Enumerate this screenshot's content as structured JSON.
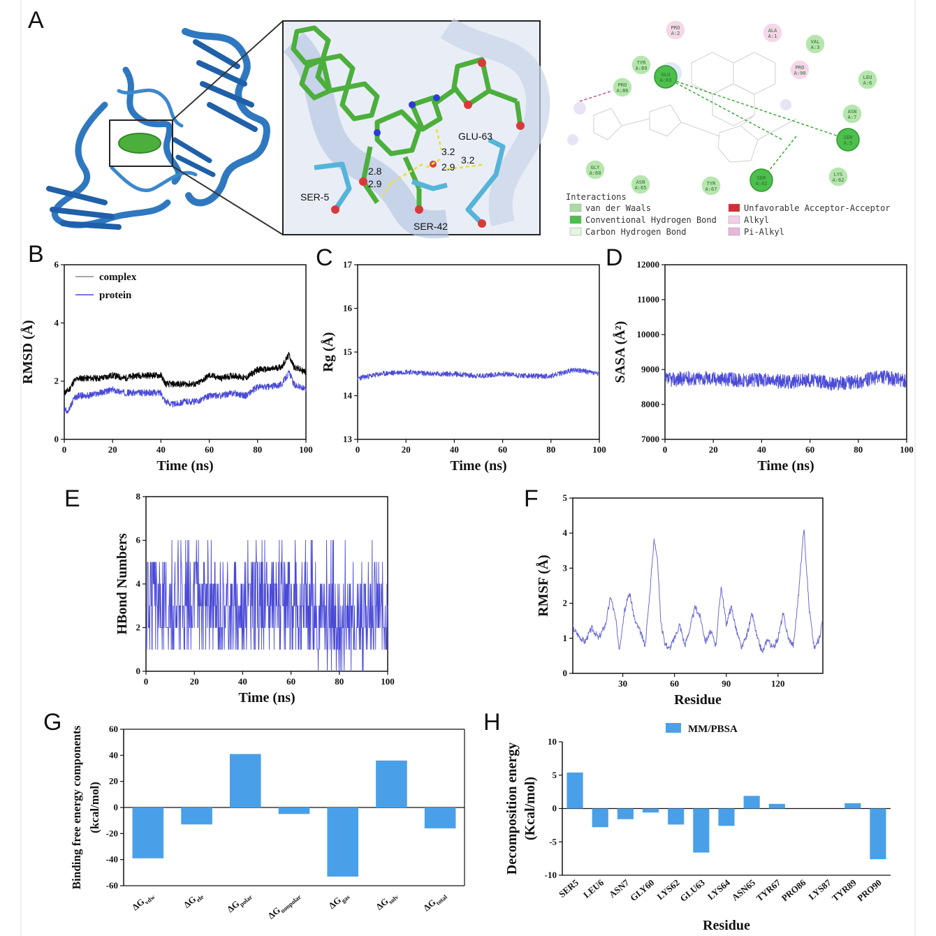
{
  "panel_labels": {
    "A": "A",
    "B": "B",
    "C": "C",
    "D": "D",
    "E": "E",
    "F": "F",
    "G": "G",
    "H": "H"
  },
  "panelA": {
    "zoom_labels": {
      "ser5": "SER-5",
      "ser42": "SER-42",
      "glu63": "GLU-63"
    },
    "distances": [
      "2.8",
      "2.9",
      "3.2",
      "2.9",
      "3.2"
    ],
    "residues": [
      {
        "name": "PRO A:2",
        "kind": "alkyl"
      },
      {
        "name": "ALA A:1",
        "kind": "alkyl"
      },
      {
        "name": "VAL A:3",
        "kind": "vdw"
      },
      {
        "name": "TYR A:89",
        "kind": "vdw"
      },
      {
        "name": "GLU A:63",
        "kind": "hbond"
      },
      {
        "name": "PRO A:90",
        "kind": "alkyl"
      },
      {
        "name": "LEU A:6",
        "kind": "vdw"
      },
      {
        "name": "PRO A:86",
        "kind": "vdw"
      },
      {
        "name": "ASN A:7",
        "kind": "vdw"
      },
      {
        "name": "SER A:5",
        "kind": "hbond"
      },
      {
        "name": "GLY A:60",
        "kind": "vdw"
      },
      {
        "name": "ASN A:65",
        "kind": "vdw"
      },
      {
        "name": "TYR A:67",
        "kind": "vdw"
      },
      {
        "name": "SER A:42",
        "kind": "hbond"
      },
      {
        "name": "LYS A:62",
        "kind": "vdw"
      }
    ],
    "interactions_title": "Interactions",
    "interactions_legend": [
      {
        "label": "van der Waals",
        "color": "#a8dca0"
      },
      {
        "label": "Conventional Hydrogen Bond",
        "color": "#4cbf4c"
      },
      {
        "label": "Carbon Hydrogen Bond",
        "color": "#e4f4e0"
      },
      {
        "label": "Unfavorable Acceptor-Acceptor",
        "color": "#d03030"
      },
      {
        "label": "Alkyl",
        "color": "#f3cfe6"
      },
      {
        "label": "Pi-Alkyl",
        "color": "#e6b8d8"
      }
    ],
    "colors": {
      "protein": "#2f78c0",
      "ligand": "#4caf3c",
      "residue_stick": "#55b4d8",
      "hbond": "#e8e04a"
    }
  },
  "chart_data": [
    {
      "id": "B",
      "type": "line",
      "xlabel": "Time (ns)",
      "ylabel": "RMSD (Å)",
      "xlim": [
        0,
        100
      ],
      "ylim": [
        0,
        6
      ],
      "xticks": [
        0,
        20,
        40,
        60,
        80,
        100
      ],
      "yticks": [
        0,
        2,
        4,
        6
      ],
      "series": [
        {
          "name": "complex",
          "color": "#000000",
          "x": [
            0,
            2,
            4,
            6,
            10,
            15,
            20,
            25,
            30,
            35,
            40,
            42,
            45,
            50,
            55,
            60,
            65,
            70,
            75,
            80,
            85,
            90,
            93,
            95,
            100
          ],
          "y": [
            1.6,
            1.7,
            2.0,
            2.1,
            2.1,
            2.1,
            2.2,
            2.1,
            2.2,
            2.2,
            2.2,
            1.9,
            1.9,
            1.9,
            1.9,
            2.2,
            2.1,
            2.2,
            2.1,
            2.4,
            2.4,
            2.5,
            2.9,
            2.5,
            2.3
          ]
        },
        {
          "name": "protein",
          "color": "#4a4ad8",
          "x": [
            0,
            2,
            4,
            6,
            10,
            15,
            20,
            25,
            30,
            35,
            40,
            42,
            45,
            50,
            55,
            60,
            65,
            70,
            75,
            80,
            85,
            90,
            93,
            95,
            100
          ],
          "y": [
            1.0,
            1.0,
            1.4,
            1.5,
            1.5,
            1.6,
            1.7,
            1.6,
            1.6,
            1.6,
            1.6,
            1.3,
            1.2,
            1.3,
            1.3,
            1.5,
            1.5,
            1.6,
            1.5,
            1.8,
            1.8,
            1.9,
            2.3,
            1.9,
            1.7
          ]
        }
      ],
      "legend": "top-left"
    },
    {
      "id": "C",
      "type": "line",
      "xlabel": "Time (ns)",
      "ylabel": "Rg (Å)",
      "xlim": [
        0,
        100
      ],
      "ylim": [
        13,
        17
      ],
      "xticks": [
        0,
        20,
        40,
        60,
        80,
        100
      ],
      "yticks": [
        13,
        14,
        15,
        16,
        17
      ],
      "series": [
        {
          "color": "#4a4ad8",
          "x": [
            0,
            5,
            10,
            20,
            30,
            40,
            50,
            60,
            70,
            80,
            90,
            95,
            100
          ],
          "y": [
            14.4,
            14.45,
            14.5,
            14.55,
            14.5,
            14.5,
            14.45,
            14.5,
            14.45,
            14.45,
            14.6,
            14.55,
            14.5
          ]
        }
      ]
    },
    {
      "id": "D",
      "type": "line",
      "xlabel": "Time (ns)",
      "ylabel": "SASA (Å²)",
      "xlim": [
        0,
        100
      ],
      "ylim": [
        7000,
        12000
      ],
      "xticks": [
        0,
        20,
        40,
        60,
        80,
        100
      ],
      "yticks": [
        7000,
        8000,
        9000,
        10000,
        11000,
        12000
      ],
      "series": [
        {
          "color": "#4a4ad8",
          "x": [
            0,
            10,
            20,
            30,
            40,
            50,
            60,
            70,
            80,
            90,
            100
          ],
          "y": [
            8700,
            8750,
            8750,
            8700,
            8700,
            8650,
            8700,
            8600,
            8650,
            8800,
            8650
          ]
        }
      ]
    },
    {
      "id": "E",
      "type": "line",
      "xlabel": "Time (ns)",
      "ylabel": "HBond Numbers",
      "xlim": [
        0,
        100
      ],
      "ylim": [
        0,
        8
      ],
      "xticks": [
        0,
        20,
        40,
        60,
        80,
        100
      ],
      "yticks": [
        0,
        2,
        4,
        6,
        8
      ],
      "series": [
        {
          "color": "#4a4ad8",
          "x": [
            0,
            10,
            20,
            30,
            40,
            50,
            60,
            65,
            70,
            75,
            80,
            85,
            90,
            95,
            100
          ],
          "y": [
            3,
            3,
            3,
            3,
            3,
            3,
            3,
            3,
            2.5,
            2.5,
            2,
            2.5,
            2.5,
            3,
            2.5
          ]
        }
      ]
    },
    {
      "id": "F",
      "type": "line",
      "xlabel": "Residue",
      "ylabel": "RMSF (Å)",
      "xlim": [
        1,
        146
      ],
      "ylim": [
        0,
        5
      ],
      "xticks": [
        30,
        60,
        90,
        120
      ],
      "yticks": [
        0,
        1,
        2,
        3,
        4,
        5
      ],
      "series": [
        {
          "color": "#6a6ad6",
          "x": [
            1,
            4,
            8,
            12,
            16,
            20,
            23,
            26,
            28,
            31,
            34,
            37,
            40,
            43,
            46,
            48,
            50,
            52,
            54,
            57,
            60,
            63,
            66,
            69,
            72,
            75,
            78,
            81,
            84,
            87,
            90,
            93,
            96,
            99,
            102,
            105,
            108,
            111,
            114,
            117,
            120,
            123,
            126,
            129,
            132,
            135,
            138,
            141,
            144,
            146
          ],
          "y": [
            1.3,
            1.1,
            0.9,
            1.3,
            1.0,
            1.4,
            2.2,
            1.5,
            0.7,
            1.8,
            2.3,
            1.5,
            1.2,
            0.8,
            2.5,
            3.8,
            3.4,
            1.5,
            0.9,
            0.7,
            1.0,
            1.4,
            0.8,
            1.3,
            1.9,
            1.6,
            0.9,
            1.2,
            0.8,
            2.5,
            1.4,
            1.9,
            1.2,
            0.7,
            1.1,
            1.7,
            1.0,
            0.6,
            1.0,
            0.7,
            1.0,
            1.7,
            1.0,
            0.8,
            2.3,
            4.2,
            1.9,
            0.7,
            1.0,
            1.6
          ]
        }
      ]
    },
    {
      "id": "G",
      "type": "bar",
      "ylabel_lines": [
        "Binding free energy components",
        "(kcal/mol)"
      ],
      "ylim": [
        -60,
        60
      ],
      "yticks": [
        -60,
        -40,
        -20,
        0,
        20,
        40,
        60
      ],
      "categories": [
        {
          "base": "ΔG",
          "sub": "vdw"
        },
        {
          "base": "ΔG",
          "sub": "ele"
        },
        {
          "base": "ΔG",
          "sub": "polar"
        },
        {
          "base": "ΔG",
          "sub": "nonpolar"
        },
        {
          "base": "ΔG",
          "sub": "gas"
        },
        {
          "base": "ΔG",
          "sub": "solv"
        },
        {
          "base": "ΔG",
          "sub": "total"
        }
      ],
      "values": [
        -39,
        -13,
        41,
        -5,
        -53,
        36,
        -16
      ],
      "color": "#4aa0e8"
    },
    {
      "id": "H",
      "type": "bar",
      "xlabel": "Residue",
      "ylabel_lines": [
        "Decomposition energy",
        "(Kcal/mol)"
      ],
      "ylim": [
        -10,
        10
      ],
      "yticks": [
        -10,
        -5,
        0,
        5,
        10
      ],
      "categories": [
        "SER5",
        "LEU6",
        "ASN7",
        "GLY60",
        "LYS62",
        "GLU63",
        "LYS64",
        "ASN65",
        "TYR67",
        "PRO86",
        "LYS87",
        "TYR89",
        "PRO90"
      ],
      "values": [
        5.4,
        -2.8,
        -1.6,
        -0.6,
        -2.4,
        -6.6,
        -2.6,
        1.9,
        0.7,
        0,
        0,
        0.8,
        -7.6
      ],
      "legend": {
        "label": "MM/PBSA",
        "position": "top"
      },
      "color": "#4aa0e8"
    }
  ]
}
